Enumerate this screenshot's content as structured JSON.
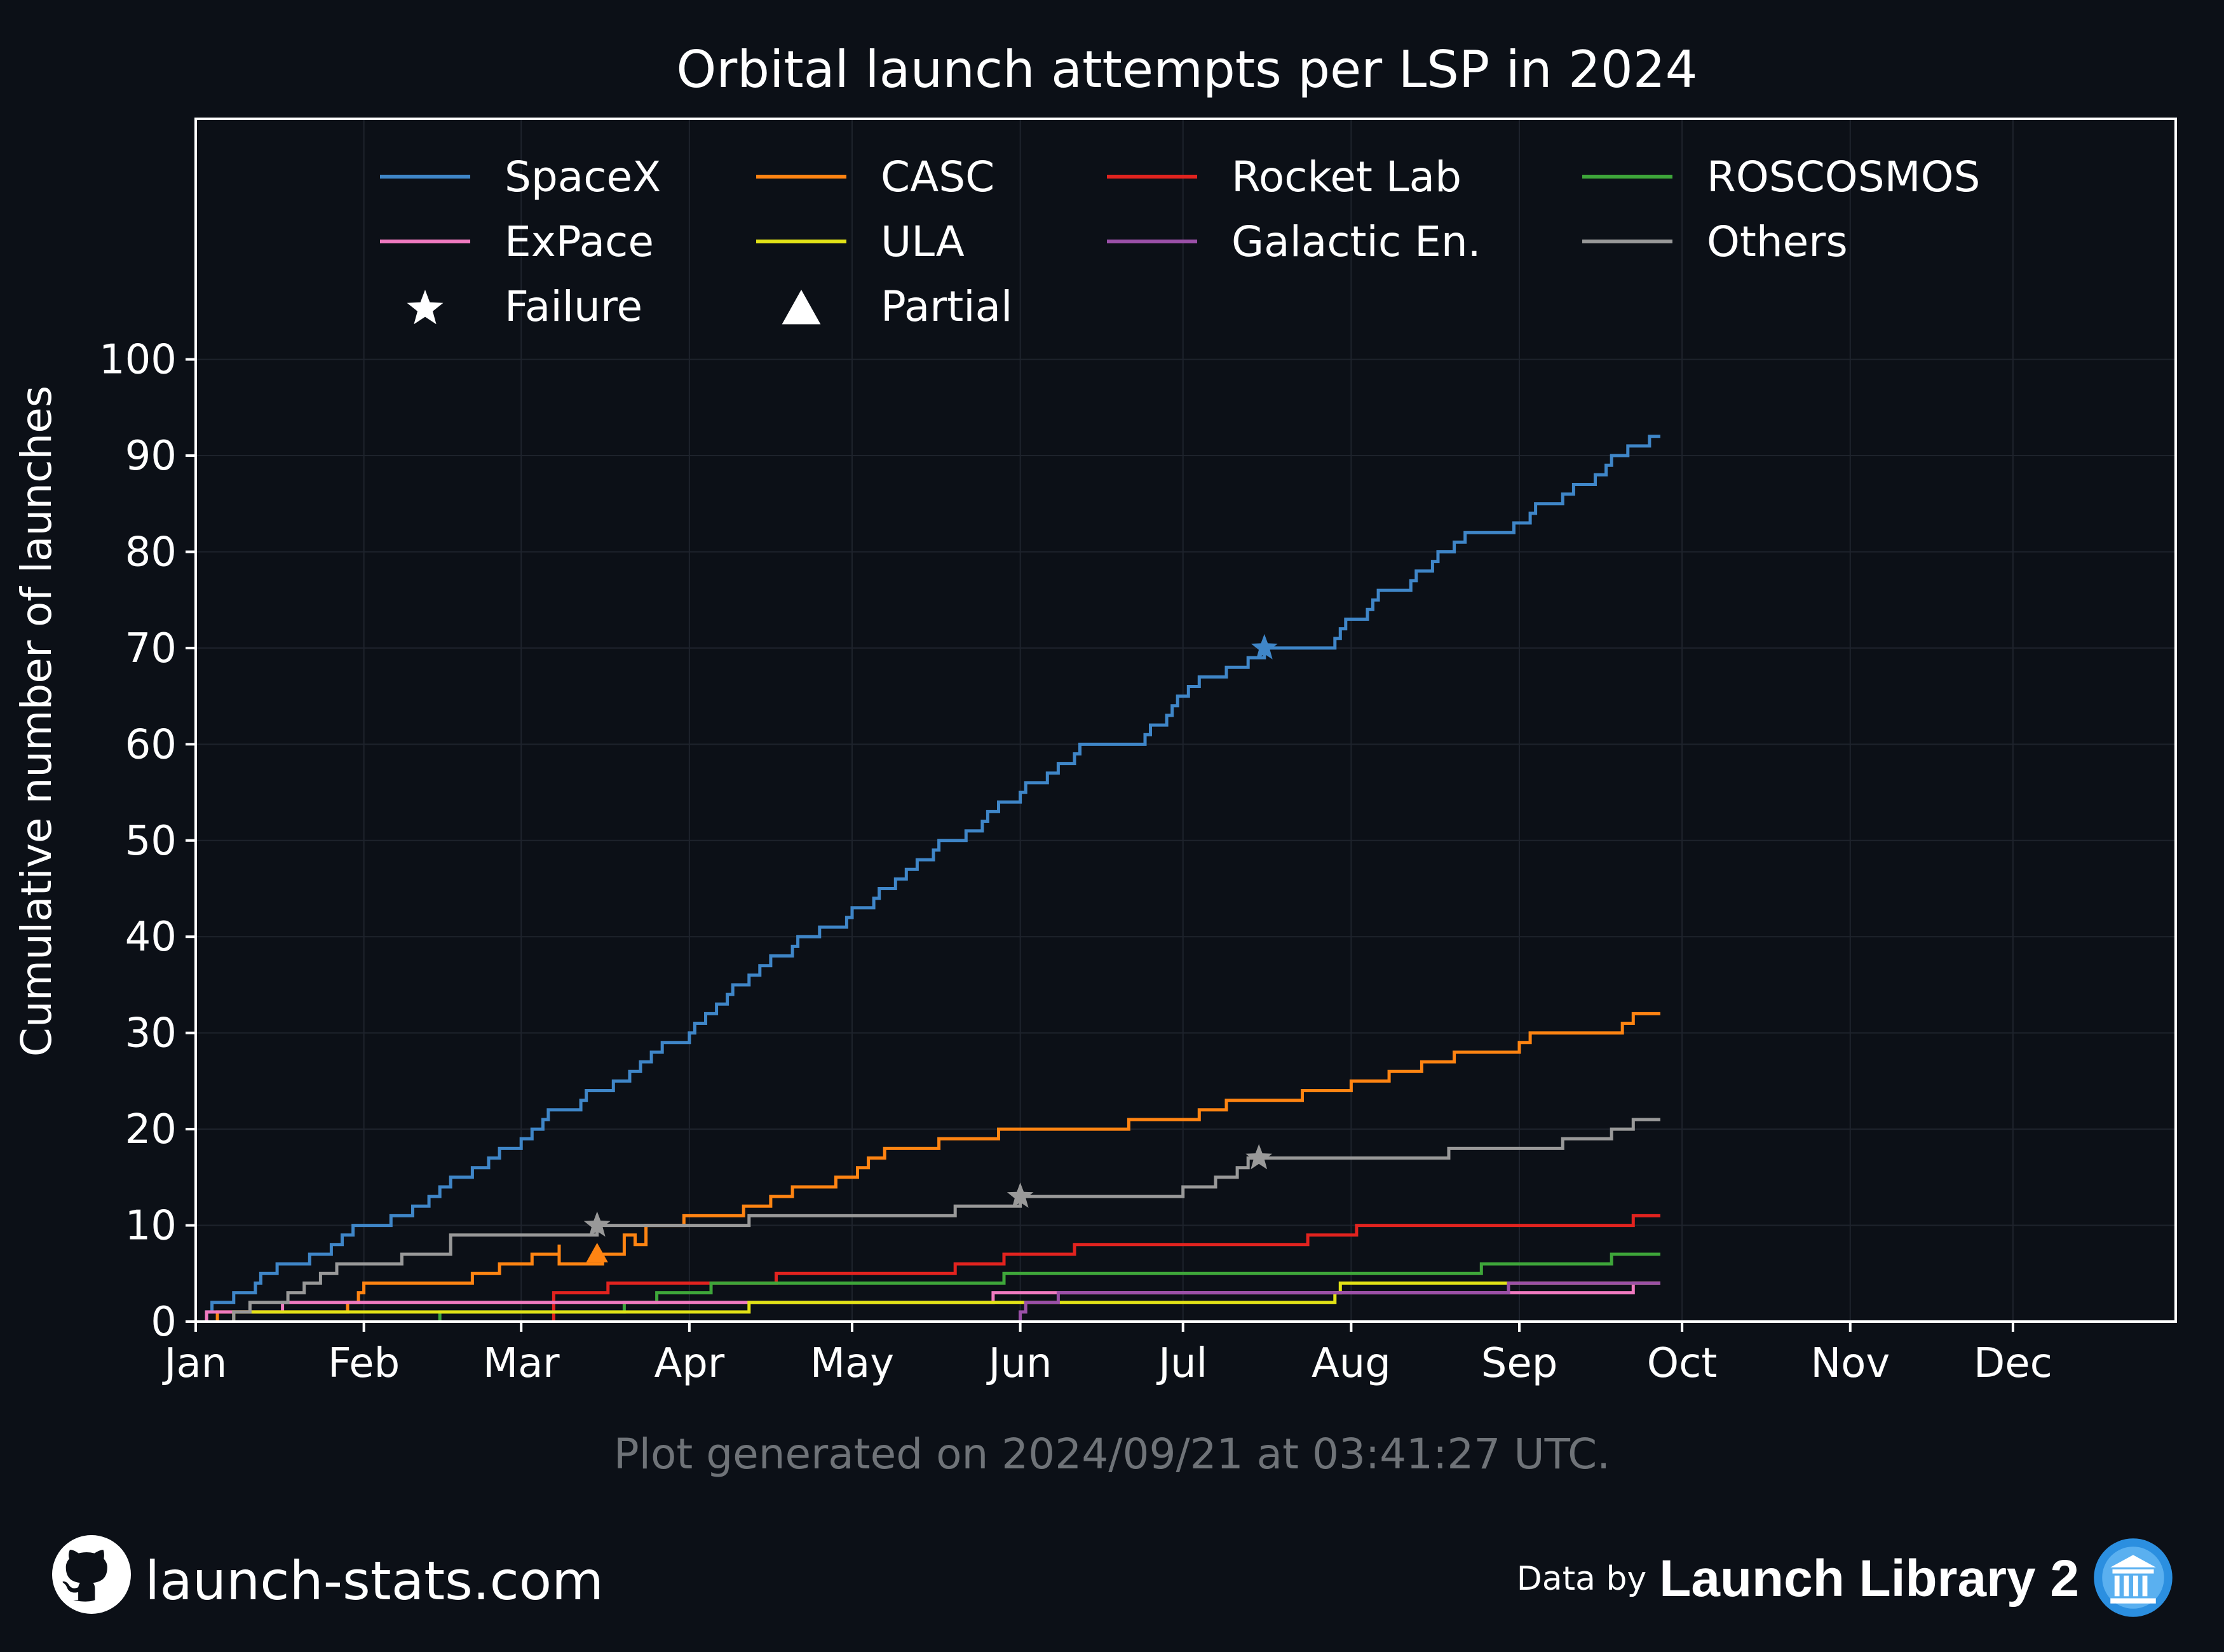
{
  "chart_data": {
    "type": "line",
    "title": "Orbital launch attempts per LSP in 2024",
    "ylabel": "Cumulative number of launches",
    "xlabel": "",
    "x_categories": [
      "Jan",
      "Feb",
      "Mar",
      "Apr",
      "May",
      "Jun",
      "Jul",
      "Aug",
      "Sep",
      "Oct",
      "Nov",
      "Dec"
    ],
    "x_unit": "day of year 2024",
    "xlim": [
      1,
      366
    ],
    "ylim": [
      0,
      125
    ],
    "y_ticks": [
      0,
      10,
      20,
      30,
      40,
      50,
      60,
      70,
      80,
      90,
      100
    ],
    "grid": true,
    "legend_position": "top",
    "legend": [
      {
        "label": "SpaceX",
        "kind": "line",
        "color": "#3f86c8"
      },
      {
        "label": "CASC",
        "kind": "line",
        "color": "#ff8412"
      },
      {
        "label": "Rocket Lab",
        "kind": "line",
        "color": "#e2231f"
      },
      {
        "label": "ROSCOSMOS",
        "kind": "line",
        "color": "#3ea63a"
      },
      {
        "label": "ExPace",
        "kind": "line",
        "color": "#f07ac0"
      },
      {
        "label": "ULA",
        "kind": "line",
        "color": "#e2e217"
      },
      {
        "label": "Galactic En.",
        "kind": "line",
        "color": "#9b50a8"
      },
      {
        "label": "Others",
        "kind": "line",
        "color": "#999999"
      },
      {
        "label": "Failure",
        "kind": "marker",
        "marker": "star",
        "color": "#ffffff"
      },
      {
        "label": "Partial",
        "kind": "marker",
        "marker": "triangle",
        "color": "#ffffff"
      }
    ],
    "series": [
      {
        "name": "SpaceX",
        "color": "#3f86c8",
        "points": [
          [
            3,
            1
          ],
          [
            4,
            2
          ],
          [
            8,
            3
          ],
          [
            12,
            4
          ],
          [
            13,
            5
          ],
          [
            16,
            6
          ],
          [
            22,
            7
          ],
          [
            26,
            8
          ],
          [
            28,
            9
          ],
          [
            30,
            10
          ],
          [
            37,
            11
          ],
          [
            41,
            12
          ],
          [
            44,
            13
          ],
          [
            46,
            14
          ],
          [
            48,
            15
          ],
          [
            52,
            16
          ],
          [
            55,
            17
          ],
          [
            57,
            18
          ],
          [
            61,
            19
          ],
          [
            63,
            20
          ],
          [
            65,
            21
          ],
          [
            66,
            22
          ],
          [
            72,
            23
          ],
          [
            73,
            24
          ],
          [
            78,
            25
          ],
          [
            81,
            26
          ],
          [
            83,
            27
          ],
          [
            85,
            28
          ],
          [
            87,
            29
          ],
          [
            92,
            30
          ],
          [
            93,
            31
          ],
          [
            95,
            32
          ],
          [
            97,
            33
          ],
          [
            99,
            34
          ],
          [
            100,
            35
          ],
          [
            103,
            36
          ],
          [
            105,
            37
          ],
          [
            107,
            38
          ],
          [
            111,
            39
          ],
          [
            112,
            40
          ],
          [
            116,
            41
          ],
          [
            121,
            42
          ],
          [
            122,
            43
          ],
          [
            126,
            44
          ],
          [
            127,
            45
          ],
          [
            130,
            46
          ],
          [
            132,
            47
          ],
          [
            134,
            48
          ],
          [
            137,
            49
          ],
          [
            138,
            50
          ],
          [
            143,
            51
          ],
          [
            146,
            52
          ],
          [
            147,
            53
          ],
          [
            149,
            54
          ],
          [
            153,
            55
          ],
          [
            154,
            56
          ],
          [
            158,
            57
          ],
          [
            160,
            58
          ],
          [
            163,
            59
          ],
          [
            164,
            60
          ],
          [
            176,
            61
          ],
          [
            177,
            62
          ],
          [
            180,
            63
          ],
          [
            181,
            64
          ],
          [
            182,
            65
          ],
          [
            184,
            66
          ],
          [
            186,
            67
          ],
          [
            191,
            68
          ],
          [
            195,
            69
          ],
          [
            198,
            70
          ],
          [
            211,
            71
          ],
          [
            212,
            72
          ],
          [
            213,
            73
          ],
          [
            217,
            74
          ],
          [
            218,
            75
          ],
          [
            219,
            76
          ],
          [
            225,
            77
          ],
          [
            226,
            78
          ],
          [
            229,
            79
          ],
          [
            230,
            80
          ],
          [
            233,
            81
          ],
          [
            235,
            82
          ],
          [
            244,
            83
          ],
          [
            247,
            84
          ],
          [
            248,
            85
          ],
          [
            253,
            86
          ],
          [
            255,
            87
          ],
          [
            259,
            88
          ],
          [
            261,
            89
          ],
          [
            262,
            90
          ],
          [
            265,
            91
          ],
          [
            269,
            92
          ],
          [
            271,
            92
          ]
        ],
        "failures": [
          [
            198,
            70
          ]
        ],
        "partials": []
      },
      {
        "name": "CASC",
        "color": "#ff8412",
        "points": [
          [
            5,
            1
          ],
          [
            29,
            2
          ],
          [
            31,
            3
          ],
          [
            32,
            4
          ],
          [
            52,
            5
          ],
          [
            57,
            6
          ],
          [
            63,
            7
          ],
          [
            68,
            8
          ],
          [
            68,
            6
          ],
          [
            75,
            6
          ],
          [
            76,
            7
          ],
          [
            80,
            8
          ],
          [
            80,
            9
          ],
          [
            82,
            8
          ],
          [
            84,
            10
          ],
          [
            91,
            11
          ],
          [
            102,
            12
          ],
          [
            107,
            13
          ],
          [
            111,
            14
          ],
          [
            119,
            15
          ],
          [
            123,
            16
          ],
          [
            125,
            17
          ],
          [
            128,
            18
          ],
          [
            138,
            19
          ],
          [
            149,
            20
          ],
          [
            173,
            21
          ],
          [
            186,
            22
          ],
          [
            191,
            23
          ],
          [
            205,
            24
          ],
          [
            214,
            25
          ],
          [
            221,
            26
          ],
          [
            227,
            27
          ],
          [
            233,
            28
          ],
          [
            245,
            29
          ],
          [
            247,
            30
          ],
          [
            264,
            31
          ],
          [
            266,
            32
          ],
          [
            271,
            32
          ]
        ],
        "failures": [],
        "partials": [
          [
            75,
            7
          ]
        ]
      },
      {
        "name": "Rocket Lab",
        "color": "#e2231f",
        "points": [
          [
            67,
            3
          ],
          [
            77,
            4
          ],
          [
            108,
            5
          ],
          [
            141,
            6
          ],
          [
            150,
            7
          ],
          [
            163,
            8
          ],
          [
            206,
            9
          ],
          [
            215,
            10
          ],
          [
            266,
            11
          ],
          [
            271,
            11
          ]
        ],
        "failures": [],
        "partials": []
      },
      {
        "name": "ROSCOSMOS",
        "color": "#3ea63a",
        "points": [
          [
            46,
            1
          ],
          [
            80,
            2
          ],
          [
            86,
            3
          ],
          [
            96,
            4
          ],
          [
            150,
            5
          ],
          [
            238,
            6
          ],
          [
            262,
            7
          ],
          [
            271,
            7
          ]
        ],
        "failures": [],
        "partials": []
      },
      {
        "name": "ExPace",
        "color": "#f07ac0",
        "points": [
          [
            3,
            1
          ],
          [
            17,
            2
          ],
          [
            148,
            3
          ],
          [
            266,
            4
          ],
          [
            271,
            4
          ]
        ],
        "failures": [],
        "partials": []
      },
      {
        "name": "ULA",
        "color": "#e2e217",
        "points": [
          [
            8,
            1
          ],
          [
            103,
            2
          ],
          [
            211,
            3
          ],
          [
            212,
            4
          ],
          [
            243,
            4
          ],
          [
            271,
            4
          ]
        ],
        "failures": [],
        "partials": []
      },
      {
        "name": "Galactic En.",
        "color": "#9b50a8",
        "points": [
          [
            153,
            1
          ],
          [
            154,
            2
          ],
          [
            160,
            3
          ],
          [
            243,
            4
          ],
          [
            271,
            4
          ]
        ],
        "failures": [],
        "partials": []
      },
      {
        "name": "Others",
        "color": "#999999",
        "points": [
          [
            8,
            1
          ],
          [
            11,
            2
          ],
          [
            18,
            3
          ],
          [
            21,
            4
          ],
          [
            24,
            5
          ],
          [
            27,
            6
          ],
          [
            39,
            7
          ],
          [
            48,
            8
          ],
          [
            48,
            9
          ],
          [
            75,
            10
          ],
          [
            103,
            11
          ],
          [
            141,
            12
          ],
          [
            153,
            13
          ],
          [
            183,
            14
          ],
          [
            189,
            15
          ],
          [
            193,
            16
          ],
          [
            195,
            17
          ],
          [
            232,
            18
          ],
          [
            253,
            19
          ],
          [
            262,
            20
          ],
          [
            266,
            21
          ],
          [
            271,
            21
          ]
        ],
        "failures": [
          [
            75,
            10
          ],
          [
            153,
            13
          ],
          [
            197,
            17
          ]
        ],
        "partials": []
      }
    ]
  },
  "footer": {
    "generated_note": "Plot generated on 2024/09/21 at 03:41:27 UTC.",
    "site": "launch-stats.com",
    "credit_prefix": "Data by",
    "credit_name": "Launch Library 2",
    "site_icon": "github-icon",
    "credit_icon": "library-icon"
  },
  "colors": {
    "background": "#0c1017",
    "axes": "#ffffff",
    "grid": "#1e232c",
    "muted_text": "#6f7378"
  }
}
